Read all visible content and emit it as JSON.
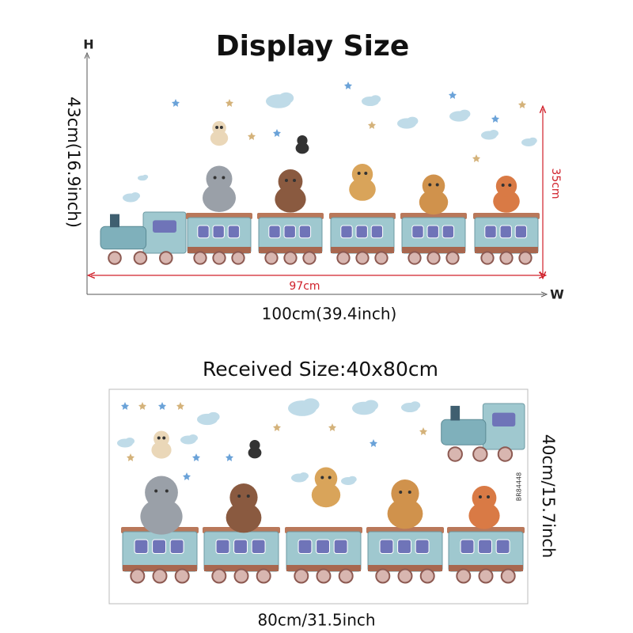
{
  "display": {
    "title": "Display Size",
    "height_axis": "H",
    "height_label": "43cm(16.9inch)",
    "inner_height": "35cm",
    "inner_width": "97cm",
    "width_label": "100cm(39.4inch)",
    "width_axis": "W"
  },
  "received": {
    "title": "Received Size:40x80cm",
    "height_label": "40cm/15.7inch",
    "width_label": "80cm/31.5inch",
    "product_code": "BR84448"
  }
}
